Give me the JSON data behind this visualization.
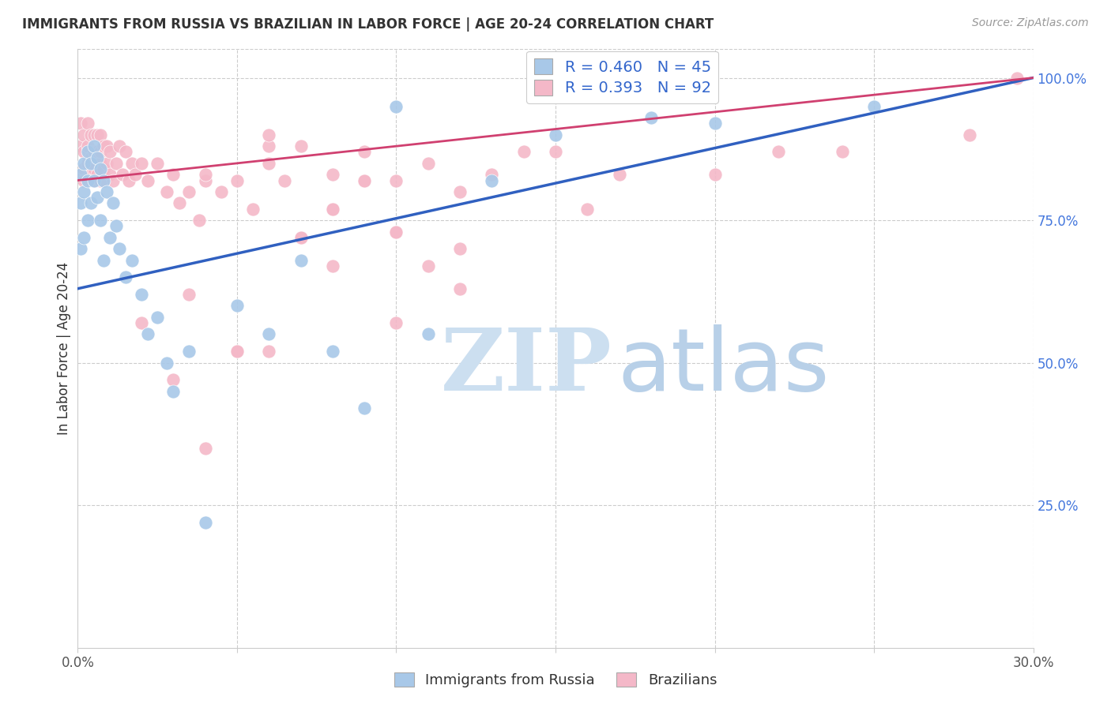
{
  "title": "IMMIGRANTS FROM RUSSIA VS BRAZILIAN IN LABOR FORCE | AGE 20-24 CORRELATION CHART",
  "source": "Source: ZipAtlas.com",
  "ylabel": "In Labor Force | Age 20-24",
  "xlim": [
    0.0,
    0.3
  ],
  "ylim": [
    0.0,
    1.05
  ],
  "background_color": "#ffffff",
  "russia_color": "#a8c8e8",
  "brazil_color": "#f4b8c8",
  "russia_line_color": "#3060c0",
  "brazil_line_color": "#d04070",
  "legend_R_russia": "R = 0.460",
  "legend_N_russia": "N = 45",
  "legend_R_brazil": "R = 0.393",
  "legend_N_brazil": "N = 92",
  "watermark_zip_color": "#ccdff0",
  "watermark_atlas_color": "#b8d0e8",
  "russia_x": [
    0.001,
    0.001,
    0.001,
    0.002,
    0.002,
    0.002,
    0.003,
    0.003,
    0.003,
    0.004,
    0.004,
    0.005,
    0.005,
    0.006,
    0.006,
    0.007,
    0.007,
    0.008,
    0.008,
    0.009,
    0.01,
    0.011,
    0.012,
    0.013,
    0.015,
    0.017,
    0.02,
    0.022,
    0.025,
    0.028,
    0.03,
    0.035,
    0.04,
    0.05,
    0.06,
    0.07,
    0.08,
    0.09,
    0.1,
    0.11,
    0.13,
    0.15,
    0.18,
    0.2,
    0.25
  ],
  "russia_y": [
    0.83,
    0.78,
    0.7,
    0.85,
    0.8,
    0.72,
    0.87,
    0.82,
    0.75,
    0.85,
    0.78,
    0.88,
    0.82,
    0.86,
    0.79,
    0.84,
    0.75,
    0.82,
    0.68,
    0.8,
    0.72,
    0.78,
    0.74,
    0.7,
    0.65,
    0.68,
    0.62,
    0.55,
    0.58,
    0.5,
    0.45,
    0.52,
    0.22,
    0.6,
    0.55,
    0.68,
    0.52,
    0.42,
    0.95,
    0.55,
    0.82,
    0.9,
    0.93,
    0.92,
    0.95
  ],
  "brazil_x": [
    0.001,
    0.001,
    0.001,
    0.002,
    0.002,
    0.002,
    0.002,
    0.003,
    0.003,
    0.003,
    0.004,
    0.004,
    0.004,
    0.005,
    0.005,
    0.005,
    0.005,
    0.006,
    0.006,
    0.006,
    0.007,
    0.007,
    0.007,
    0.007,
    0.008,
    0.008,
    0.008,
    0.009,
    0.009,
    0.01,
    0.01,
    0.011,
    0.012,
    0.013,
    0.014,
    0.015,
    0.016,
    0.017,
    0.018,
    0.02,
    0.022,
    0.025,
    0.028,
    0.03,
    0.032,
    0.035,
    0.038,
    0.04,
    0.045,
    0.05,
    0.055,
    0.06,
    0.065,
    0.07,
    0.08,
    0.09,
    0.1,
    0.11,
    0.12,
    0.13,
    0.14,
    0.15,
    0.17,
    0.2,
    0.22,
    0.24,
    0.28,
    0.295,
    0.06,
    0.08,
    0.1,
    0.12,
    0.04,
    0.05,
    0.06,
    0.07,
    0.08,
    0.09,
    0.1,
    0.02,
    0.03,
    0.035,
    0.04,
    0.05,
    0.06,
    0.07,
    0.08,
    0.09,
    0.1,
    0.11,
    0.12,
    0.16
  ],
  "brazil_y": [
    0.88,
    0.83,
    0.92,
    0.87,
    0.84,
    0.9,
    0.82,
    0.88,
    0.85,
    0.92,
    0.86,
    0.83,
    0.9,
    0.87,
    0.84,
    0.9,
    0.82,
    0.87,
    0.83,
    0.9,
    0.85,
    0.82,
    0.87,
    0.9,
    0.84,
    0.88,
    0.82,
    0.85,
    0.88,
    0.83,
    0.87,
    0.82,
    0.85,
    0.88,
    0.83,
    0.87,
    0.82,
    0.85,
    0.83,
    0.85,
    0.82,
    0.85,
    0.8,
    0.83,
    0.78,
    0.8,
    0.75,
    0.82,
    0.8,
    0.82,
    0.77,
    0.85,
    0.82,
    0.88,
    0.83,
    0.87,
    0.82,
    0.85,
    0.63,
    0.83,
    0.87,
    0.87,
    0.83,
    0.83,
    0.87,
    0.87,
    0.9,
    1.0,
    0.52,
    0.67,
    0.57,
    0.7,
    0.35,
    0.52,
    0.88,
    0.72,
    0.77,
    0.82,
    0.73,
    0.57,
    0.47,
    0.62,
    0.83,
    0.52,
    0.9,
    0.72,
    0.77,
    0.82,
    0.73,
    0.67,
    0.8,
    0.77
  ]
}
